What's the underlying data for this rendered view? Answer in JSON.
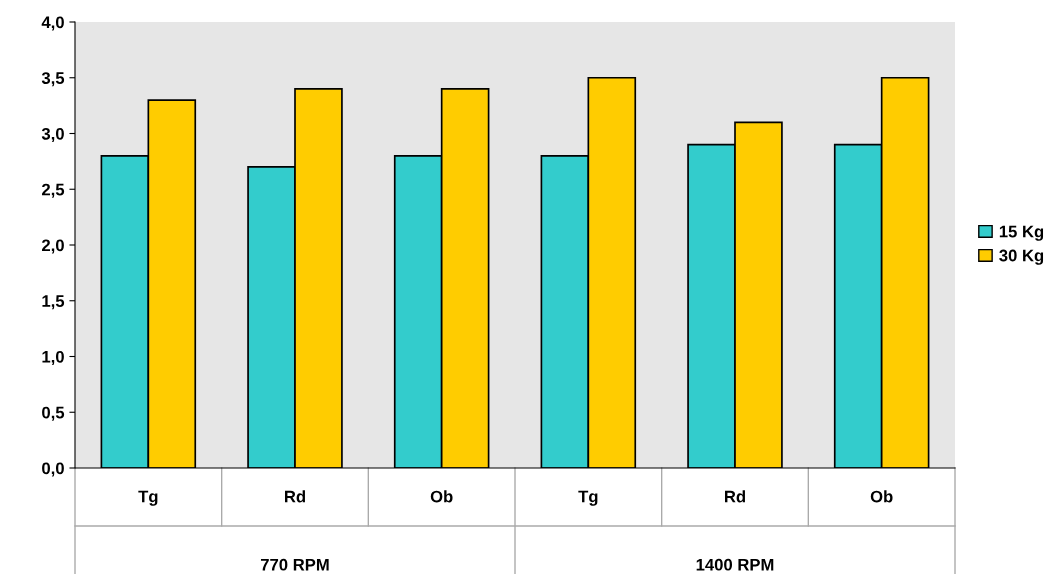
{
  "chart_data": {
    "type": "bar",
    "categories": [
      "Tg",
      "Rd",
      "Ob",
      "Tg",
      "Rd",
      "Ob"
    ],
    "series": [
      {
        "name": "15 Kg",
        "color": "#33cccc",
        "values": [
          2.8,
          2.7,
          2.8,
          2.8,
          2.9,
          2.9
        ]
      },
      {
        "name": "30 Kg",
        "color": "#ffcc00",
        "values": [
          3.3,
          3.4,
          3.4,
          3.5,
          3.1,
          3.5
        ]
      }
    ],
    "ylim": [
      0,
      4
    ],
    "yticks": [
      {
        "value": 0,
        "label": "0,0"
      },
      {
        "value": 0.5,
        "label": "0,5"
      },
      {
        "value": 1,
        "label": "1,0"
      },
      {
        "value": 1.5,
        "label": "1,5"
      },
      {
        "value": 2,
        "label": "2,0"
      },
      {
        "value": 2.5,
        "label": "2,5"
      },
      {
        "value": 3,
        "label": "3,0"
      },
      {
        "value": 3.5,
        "label": "3,5"
      },
      {
        "value": 4,
        "label": "4,0"
      }
    ],
    "annotations": [
      "770 RPM",
      "1400 RPM"
    ],
    "grid": false,
    "legend": "right"
  }
}
